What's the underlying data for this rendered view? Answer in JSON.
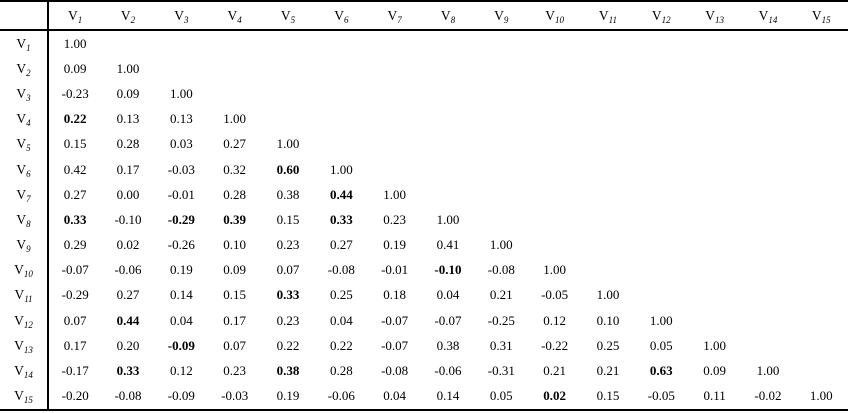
{
  "table": {
    "description": "correlation-matrix",
    "var_prefix": "V",
    "corner_label": "",
    "col_subscripts": [
      "1",
      "2",
      "3",
      "4",
      "5",
      "6",
      "7",
      "8",
      "9",
      "10",
      "11",
      "12",
      "13",
      "14",
      "15"
    ],
    "num_columns": 15,
    "rows": [
      {
        "sub": "1",
        "values": [
          "1.00"
        ],
        "bold": []
      },
      {
        "sub": "2",
        "values": [
          "0.09",
          "1.00"
        ],
        "bold": []
      },
      {
        "sub": "3",
        "values": [
          "-0.23",
          "0.09",
          "1.00"
        ],
        "bold": []
      },
      {
        "sub": "4",
        "values": [
          "0.22",
          "0.13",
          "0.13",
          "1.00"
        ],
        "bold": [
          1
        ]
      },
      {
        "sub": "5",
        "values": [
          "0.15",
          "0.28",
          "0.03",
          "0.27",
          "1.00"
        ],
        "bold": []
      },
      {
        "sub": "6",
        "values": [
          "0.42",
          "0.17",
          "-0.03",
          "0.32",
          "0.60",
          "1.00"
        ],
        "bold": [
          5
        ]
      },
      {
        "sub": "7",
        "values": [
          "0.27",
          "0.00",
          "-0.01",
          "0.28",
          "0.38",
          "0.44",
          "1.00"
        ],
        "bold": [
          6
        ]
      },
      {
        "sub": "8",
        "values": [
          "0.33",
          "-0.10",
          "-0.29",
          "0.39",
          "0.15",
          "0.33",
          "0.23",
          "1.00"
        ],
        "bold": [
          1,
          3,
          4,
          6
        ]
      },
      {
        "sub": "9",
        "values": [
          "0.29",
          "0.02",
          "-0.26",
          "0.10",
          "0.23",
          "0.27",
          "0.19",
          "0.41",
          "1.00"
        ],
        "bold": []
      },
      {
        "sub": "10",
        "values": [
          "-0.07",
          "-0.06",
          "0.19",
          "0.09",
          "0.07",
          "-0.08",
          "-0.01",
          "-0.10",
          "-0.08",
          "1.00"
        ],
        "bold": [
          8
        ]
      },
      {
        "sub": "11",
        "values": [
          "-0.29",
          "0.27",
          "0.14",
          "0.15",
          "0.33",
          "0.25",
          "0.18",
          "0.04",
          "0.21",
          "-0.05",
          "1.00"
        ],
        "bold": [
          5
        ]
      },
      {
        "sub": "12",
        "values": [
          "0.07",
          "0.44",
          "0.04",
          "0.17",
          "0.23",
          "0.04",
          "-0.07",
          "-0.07",
          "-0.25",
          "0.12",
          "0.10",
          "1.00"
        ],
        "bold": [
          2
        ]
      },
      {
        "sub": "13",
        "values": [
          "0.17",
          "0.20",
          "-0.09",
          "0.07",
          "0.22",
          "0.22",
          "-0.07",
          "0.38",
          "0.31",
          "-0.22",
          "0.25",
          "0.05",
          "1.00"
        ],
        "bold": [
          3
        ]
      },
      {
        "sub": "14",
        "values": [
          "-0.17",
          "0.33",
          "0.12",
          "0.23",
          "0.38",
          "0.28",
          "-0.08",
          "-0.06",
          "-0.31",
          "0.21",
          "0.21",
          "0.63",
          "0.09",
          "1.00"
        ],
        "bold": [
          2,
          5,
          12
        ]
      },
      {
        "sub": "15",
        "values": [
          "-0.20",
          "-0.08",
          "-0.09",
          "-0.03",
          "0.19",
          "-0.06",
          "0.04",
          "0.14",
          "0.05",
          "0.02",
          "0.15",
          "-0.05",
          "0.11",
          "-0.02",
          "1.00"
        ],
        "bold": [
          10
        ]
      }
    ],
    "text_color": "#000000",
    "rule_color": "#000000",
    "background_color": "#ffffff"
  }
}
